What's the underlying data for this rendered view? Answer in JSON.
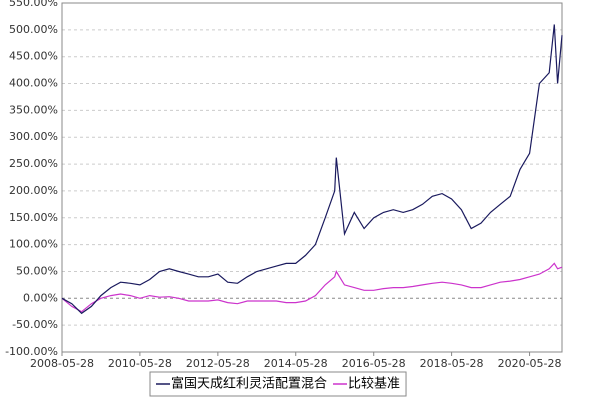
{
  "chart_data": {
    "type": "line",
    "x": [
      "2008-05-28",
      "2008-08-28",
      "2008-11-28",
      "2009-02-28",
      "2009-05-28",
      "2009-08-28",
      "2009-11-28",
      "2010-02-28",
      "2010-05-28",
      "2010-08-28",
      "2010-11-28",
      "2011-02-28",
      "2011-05-28",
      "2011-08-28",
      "2011-11-28",
      "2012-02-28",
      "2012-05-28",
      "2012-08-28",
      "2012-11-28",
      "2013-02-28",
      "2013-05-28",
      "2013-08-28",
      "2013-11-28",
      "2014-02-28",
      "2014-05-28",
      "2014-08-28",
      "2014-11-28",
      "2015-02-28",
      "2015-05-28",
      "2015-06-12",
      "2015-08-28",
      "2015-11-28",
      "2016-02-28",
      "2016-05-28",
      "2016-08-28",
      "2016-11-28",
      "2017-02-28",
      "2017-05-28",
      "2017-08-28",
      "2017-11-28",
      "2018-02-28",
      "2018-05-28",
      "2018-08-28",
      "2018-11-28",
      "2019-02-28",
      "2019-05-28",
      "2019-08-28",
      "2019-11-28",
      "2020-02-28",
      "2020-05-28",
      "2020-08-28",
      "2020-11-28",
      "2021-01-15",
      "2021-02-15",
      "2021-03-28"
    ],
    "series": [
      {
        "name": "富国天成红利灵活配置混合",
        "color": "#1a1a5e",
        "values": [
          0,
          -10,
          -28,
          -15,
          5,
          20,
          30,
          28,
          25,
          35,
          50,
          55,
          50,
          45,
          40,
          40,
          45,
          30,
          28,
          40,
          50,
          55,
          60,
          65,
          65,
          80,
          100,
          150,
          200,
          262,
          120,
          160,
          130,
          150,
          160,
          165,
          160,
          165,
          175,
          190,
          195,
          185,
          165,
          130,
          140,
          160,
          175,
          190,
          240,
          270,
          400,
          420,
          510,
          400,
          490
        ]
      },
      {
        "name": "比较基准",
        "color": "#cc33cc",
        "values": [
          0,
          -15,
          -25,
          -10,
          0,
          5,
          8,
          5,
          0,
          5,
          2,
          3,
          0,
          -5,
          -5,
          -5,
          -3,
          -8,
          -10,
          -5,
          -5,
          -5,
          -5,
          -8,
          -8,
          -5,
          5,
          25,
          40,
          50,
          25,
          20,
          15,
          15,
          18,
          20,
          20,
          22,
          25,
          28,
          30,
          28,
          25,
          20,
          20,
          25,
          30,
          32,
          35,
          40,
          45,
          55,
          65,
          55,
          58
        ]
      }
    ],
    "xlim": [
      "2008-05-28",
      "2021-03-28"
    ],
    "xticks": [
      "2008-05-28",
      "2010-05-28",
      "2012-05-28",
      "2014-05-28",
      "2016-05-28",
      "2018-05-28",
      "2020-05-28"
    ],
    "ylim": [
      -100,
      550
    ],
    "yticks": [
      {
        "value": -100,
        "label": "-100.00%"
      },
      {
        "value": -50,
        "label": "-50.00%"
      },
      {
        "value": 0,
        "label": "0.00%"
      },
      {
        "value": 50,
        "label": "50.00%"
      },
      {
        "value": 100,
        "label": "100.00%"
      },
      {
        "value": 150,
        "label": "150.00%"
      },
      {
        "value": 200,
        "label": "200.00%"
      },
      {
        "value": 250,
        "label": "250.00%"
      },
      {
        "value": 300,
        "label": "300.00%"
      },
      {
        "value": 350,
        "label": "350.00%"
      },
      {
        "value": 400,
        "label": "400.00%"
      },
      {
        "value": 450,
        "label": "450.00%"
      },
      {
        "value": 500,
        "label": "500.00%"
      },
      {
        "value": 550,
        "label": "550.00%"
      }
    ],
    "grid": true,
    "legend": "bottom"
  }
}
